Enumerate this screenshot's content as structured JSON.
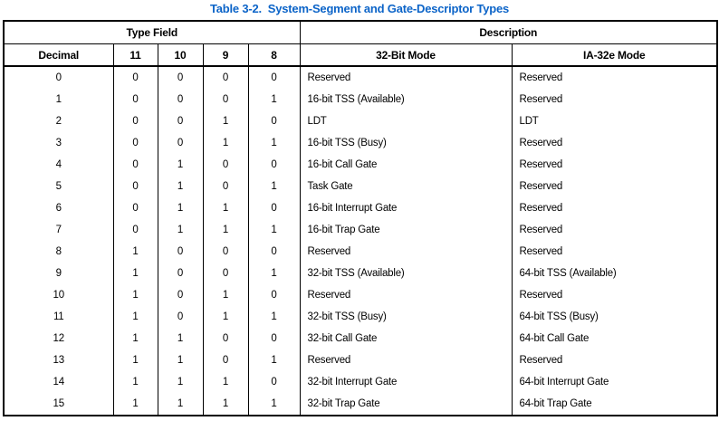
{
  "title": "Table 3-2.  System-Segment and Gate-Descriptor Types",
  "colors": {
    "title_blue": "#0C64C8",
    "border": "#000000",
    "text": "#000000",
    "background": "#FFFFFF"
  },
  "table": {
    "group_headers": [
      {
        "label": "Type Field",
        "span": 5
      },
      {
        "label": "Description",
        "span": 2
      }
    ],
    "columns": [
      "Decimal",
      "11",
      "10",
      "9",
      "8",
      "32-Bit Mode",
      "IA-32e Mode"
    ],
    "rows": [
      [
        "0",
        "0",
        "0",
        "0",
        "0",
        "Reserved",
        "Reserved"
      ],
      [
        "1",
        "0",
        "0",
        "0",
        "1",
        "16-bit TSS (Available)",
        "Reserved"
      ],
      [
        "2",
        "0",
        "0",
        "1",
        "0",
        "LDT",
        "LDT"
      ],
      [
        "3",
        "0",
        "0",
        "1",
        "1",
        "16-bit TSS (Busy)",
        "Reserved"
      ],
      [
        "4",
        "0",
        "1",
        "0",
        "0",
        "16-bit Call Gate",
        "Reserved"
      ],
      [
        "5",
        "0",
        "1",
        "0",
        "1",
        "Task Gate",
        "Reserved"
      ],
      [
        "6",
        "0",
        "1",
        "1",
        "0",
        "16-bit Interrupt Gate",
        "Reserved"
      ],
      [
        "7",
        "0",
        "1",
        "1",
        "1",
        "16-bit Trap Gate",
        "Reserved"
      ],
      [
        "8",
        "1",
        "0",
        "0",
        "0",
        "Reserved",
        "Reserved"
      ],
      [
        "9",
        "1",
        "0",
        "0",
        "1",
        "32-bit TSS (Available)",
        "64-bit TSS (Available)"
      ],
      [
        "10",
        "1",
        "0",
        "1",
        "0",
        "Reserved",
        "Reserved"
      ],
      [
        "11",
        "1",
        "0",
        "1",
        "1",
        "32-bit TSS (Busy)",
        "64-bit TSS (Busy)"
      ],
      [
        "12",
        "1",
        "1",
        "0",
        "0",
        "32-bit Call Gate",
        "64-bit Call Gate"
      ],
      [
        "13",
        "1",
        "1",
        "0",
        "1",
        "Reserved",
        "Reserved"
      ],
      [
        "14",
        "1",
        "1",
        "1",
        "0",
        "32-bit Interrupt Gate",
        "64-bit Interrupt Gate"
      ],
      [
        "15",
        "1",
        "1",
        "1",
        "1",
        "32-bit Trap Gate",
        "64-bit Trap Gate"
      ]
    ]
  }
}
